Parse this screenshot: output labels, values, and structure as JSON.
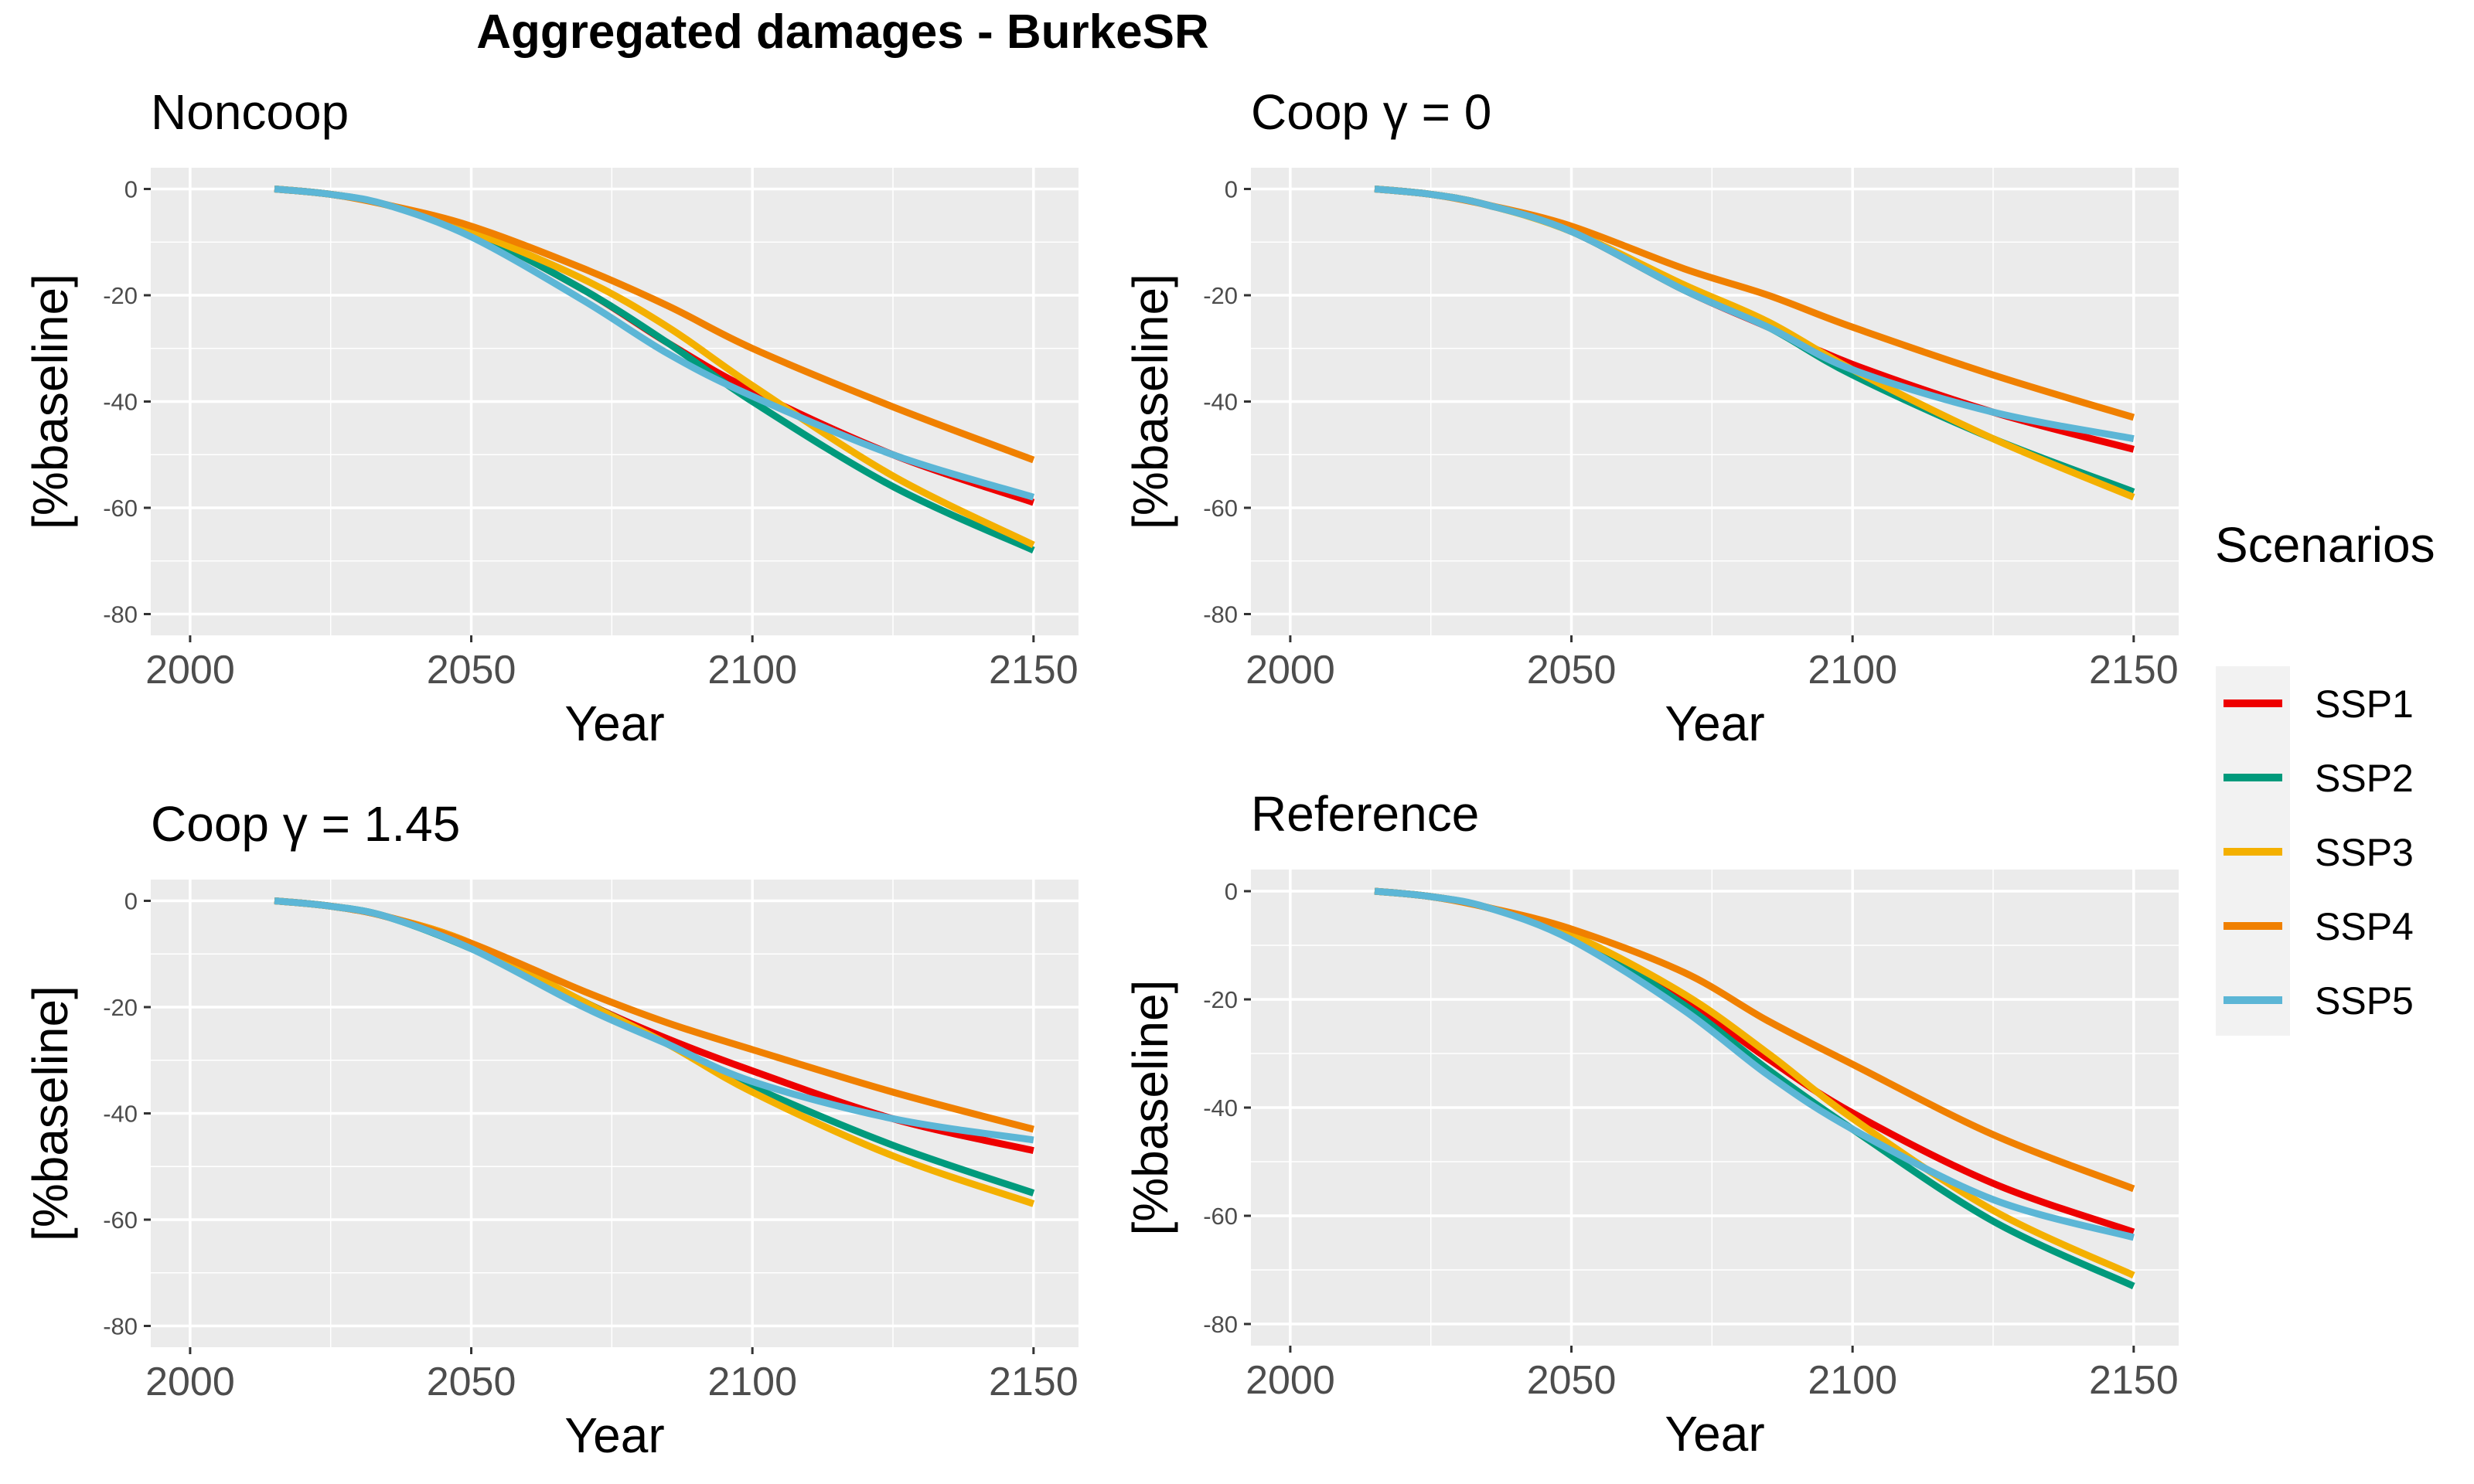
{
  "figure_title": "Aggregated damages - BurkeSR",
  "legend": {
    "title": "Scenarios",
    "entries": [
      {
        "name": "SSP1",
        "color": "#EE0000"
      },
      {
        "name": "SSP2",
        "color": "#009A7C"
      },
      {
        "name": "SSP3",
        "color": "#F4B000"
      },
      {
        "name": "SSP4",
        "color": "#F08000"
      },
      {
        "name": "SSP5",
        "color": "#5CB6D6"
      }
    ]
  },
  "chart_data": [
    {
      "type": "line",
      "title": "Noncoop",
      "title_gamma": "",
      "xlabel": "Year",
      "ylabel": "[%baseline]",
      "xlim": [
        1993,
        2158
      ],
      "ylim": [
        -84,
        4
      ],
      "xticks": [
        2000,
        2050,
        2100,
        2150
      ],
      "yticks": [
        0,
        -20,
        -40,
        -60,
        -80
      ],
      "grid": true,
      "x": [
        2015,
        2025,
        2035,
        2050,
        2070,
        2085,
        2100,
        2125,
        2150
      ],
      "series": [
        {
          "name": "SSP1",
          "values": [
            0,
            -1,
            -3,
            -8,
            -19,
            -29,
            -38,
            -50,
            -59
          ]
        },
        {
          "name": "SSP2",
          "values": [
            0,
            -1,
            -3,
            -8,
            -19,
            -29,
            -40,
            -56,
            -68
          ]
        },
        {
          "name": "SSP3",
          "values": [
            0,
            -1,
            -3,
            -8,
            -17,
            -26,
            -37,
            -54,
            -67
          ]
        },
        {
          "name": "SSP4",
          "values": [
            0,
            -1,
            -3,
            -7,
            -15,
            -22,
            -30,
            -41,
            -51
          ]
        },
        {
          "name": "SSP5",
          "values": [
            0,
            -1,
            -3,
            -9,
            -21,
            -31,
            -39,
            -50,
            -58
          ]
        }
      ]
    },
    {
      "type": "line",
      "title": "Coop ",
      "title_gamma": "γ = 0",
      "xlabel": "Year",
      "ylabel": "[%baseline]",
      "xlim": [
        1993,
        2158
      ],
      "ylim": [
        -84,
        4
      ],
      "xticks": [
        2000,
        2050,
        2100,
        2150
      ],
      "yticks": [
        0,
        -20,
        -40,
        -60,
        -80
      ],
      "grid": true,
      "x": [
        2015,
        2025,
        2035,
        2050,
        2070,
        2085,
        2100,
        2125,
        2150
      ],
      "series": [
        {
          "name": "SSP1",
          "values": [
            0,
            -1,
            -3,
            -8,
            -19,
            -26,
            -33,
            -42,
            -49
          ]
        },
        {
          "name": "SSP2",
          "values": [
            0,
            -1,
            -3,
            -8,
            -19,
            -26,
            -35,
            -47,
            -57
          ]
        },
        {
          "name": "SSP3",
          "values": [
            0,
            -1,
            -3,
            -8,
            -18,
            -25,
            -34,
            -47,
            -58
          ]
        },
        {
          "name": "SSP4",
          "values": [
            0,
            -1,
            -3,
            -7,
            -15,
            -20,
            -26,
            -35,
            -43
          ]
        },
        {
          "name": "SSP5",
          "values": [
            0,
            -1,
            -3,
            -8,
            -19,
            -26,
            -34,
            -42,
            -47
          ]
        }
      ]
    },
    {
      "type": "line",
      "title": "Coop ",
      "title_gamma": "γ = 1.45",
      "xlabel": "Year",
      "ylabel": "[%baseline]",
      "xlim": [
        1993,
        2158
      ],
      "ylim": [
        -84,
        4
      ],
      "xticks": [
        2000,
        2050,
        2100,
        2150
      ],
      "yticks": [
        0,
        -20,
        -40,
        -60,
        -80
      ],
      "grid": true,
      "x": [
        2015,
        2025,
        2035,
        2050,
        2070,
        2085,
        2100,
        2125,
        2150
      ],
      "series": [
        {
          "name": "SSP1",
          "values": [
            0,
            -1,
            -3,
            -8,
            -19,
            -26,
            -32,
            -41,
            -47
          ]
        },
        {
          "name": "SSP2",
          "values": [
            0,
            -1,
            -3,
            -9,
            -19,
            -27,
            -35,
            -46,
            -55
          ]
        },
        {
          "name": "SSP3",
          "values": [
            0,
            -1,
            -3,
            -8,
            -19,
            -27,
            -36,
            -48,
            -57
          ]
        },
        {
          "name": "SSP4",
          "values": [
            0,
            -1,
            -3,
            -8,
            -17,
            -23,
            -28,
            -36,
            -43
          ]
        },
        {
          "name": "SSP5",
          "values": [
            0,
            -1,
            -3,
            -9,
            -20,
            -27,
            -34,
            -41,
            -45
          ]
        }
      ]
    },
    {
      "type": "line",
      "title": "Reference",
      "title_gamma": "",
      "xlabel": "Year",
      "ylabel": "[%baseline]",
      "xlim": [
        1993,
        2158
      ],
      "ylim": [
        -84,
        4
      ],
      "xticks": [
        2000,
        2050,
        2100,
        2150
      ],
      "yticks": [
        0,
        -20,
        -40,
        -60,
        -80
      ],
      "grid": true,
      "x": [
        2015,
        2025,
        2035,
        2050,
        2070,
        2085,
        2100,
        2125,
        2150
      ],
      "series": [
        {
          "name": "SSP1",
          "values": [
            0,
            -1,
            -3,
            -8,
            -20,
            -31,
            -41,
            -54,
            -63
          ]
        },
        {
          "name": "SSP2",
          "values": [
            0,
            -1,
            -3,
            -8,
            -21,
            -33,
            -44,
            -61,
            -73
          ]
        },
        {
          "name": "SSP3",
          "values": [
            0,
            -1,
            -3,
            -8,
            -19,
            -30,
            -42,
            -59,
            -71
          ]
        },
        {
          "name": "SSP4",
          "values": [
            0,
            -1,
            -3,
            -7,
            -15,
            -24,
            -32,
            -45,
            -55
          ]
        },
        {
          "name": "SSP5",
          "values": [
            0,
            -1,
            -3,
            -9,
            -22,
            -34,
            -44,
            -57,
            -64
          ]
        }
      ]
    }
  ]
}
